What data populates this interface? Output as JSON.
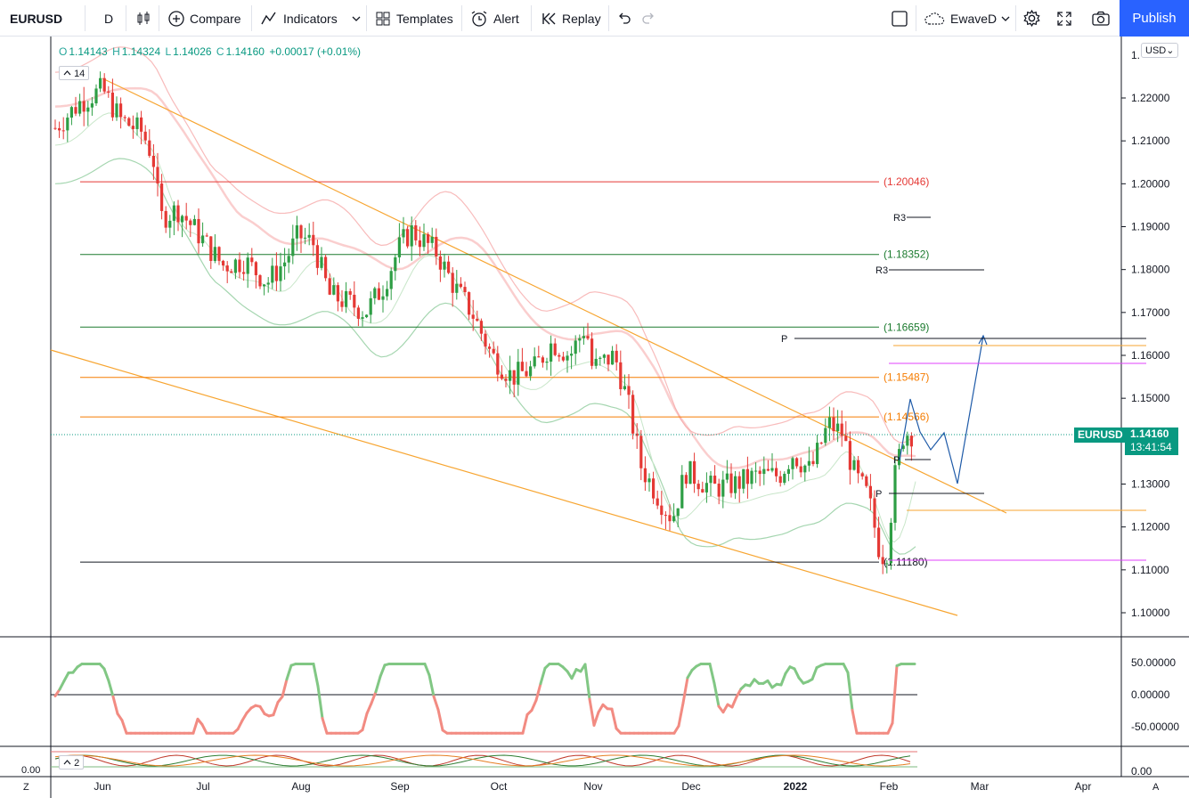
{
  "toolbar": {
    "symbol": "EURUSD",
    "interval": "D",
    "compare": "Compare",
    "indicators": "Indicators",
    "templates": "Templates",
    "alert": "Alert",
    "replay": "Replay",
    "layout_name": "EwaveD",
    "publish": "Publish"
  },
  "legend": {
    "open_k": "O",
    "open": "1.14143",
    "high_k": "H",
    "high": "1.14324",
    "low_k": "L",
    "low": "1.14026",
    "close_k": "C",
    "close": "1.14160",
    "change": "+0.00017 (+0.01%)",
    "ma_length": "14",
    "osc2_length": "2"
  },
  "price_axis": {
    "currency": "USD",
    "ticks": [
      "1.22000",
      "1.21000",
      "1.20000",
      "1.19000",
      "1.18000",
      "1.17000",
      "1.16000",
      "1.15000",
      "1.14000",
      "1.13000",
      "1.12000",
      "1.11000",
      "1.10000"
    ],
    "top_partial": "1.",
    "last_symbol": "EURUSD",
    "last_price": "1.14160",
    "countdown": "13:41:54"
  },
  "osc_axis": {
    "ticks": [
      "50.00000",
      "0.00000",
      "-50.00000"
    ],
    "bottom_tick": "0.00",
    "left_tick": "0.00"
  },
  "time_axis": {
    "labels": [
      "Jun",
      "Jul",
      "Aug",
      "Sep",
      "Oct",
      "Nov",
      "Dec",
      "2022",
      "Feb",
      "Mar",
      "Apr"
    ],
    "left_btn": "Z",
    "right_btn": "A"
  },
  "levels": [
    {
      "label": "(1.20046)",
      "price": 1.20046,
      "color": "#e53935"
    },
    {
      "label": "(1.18352)",
      "price": 1.18352,
      "color": "#1b7a2e"
    },
    {
      "label": "(1.16659)",
      "price": 1.16659,
      "color": "#1b7a2e"
    },
    {
      "label": "(1.15487)",
      "price": 1.15487,
      "color": "#f57c00"
    },
    {
      "label": "(1.14566)",
      "price": 1.14566,
      "color": "#f57c00"
    },
    {
      "label": "(1.11180)",
      "price": 1.1118,
      "color": "#131722"
    }
  ],
  "pivot_labels": {
    "r3a": "R3",
    "r3b": "R3",
    "pa": "P",
    "pb": "P",
    "pc": "P"
  },
  "colors": {
    "up": "#26a69a",
    "up_alt": "#089981",
    "down": "#ef5350",
    "orange": "#f7a531",
    "magenta": "#e040fb",
    "blue": "#1e5aa8",
    "accent": "#2962ff"
  }
}
